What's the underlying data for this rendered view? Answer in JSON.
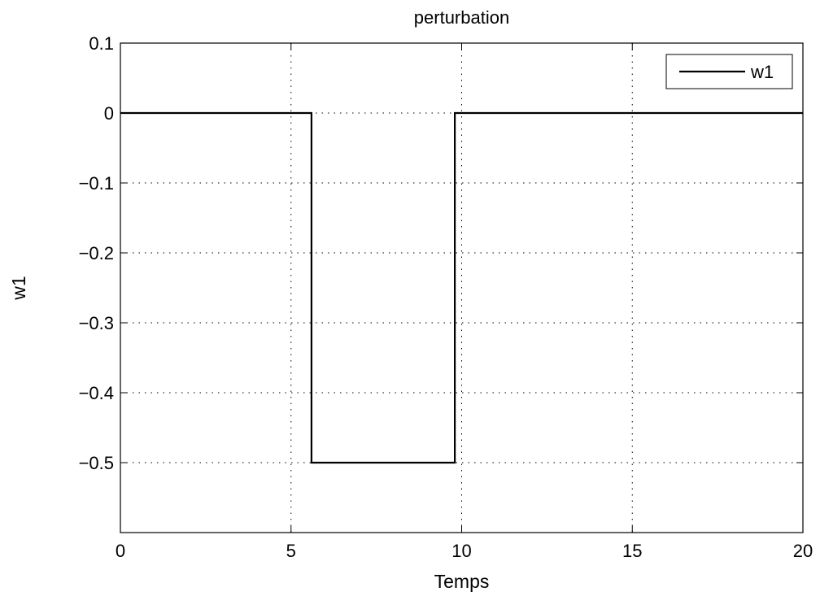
{
  "chart_data": {
    "type": "line",
    "title": "perturbation",
    "xlabel": "Temps",
    "ylabel": "w1",
    "xlim": [
      0,
      20
    ],
    "ylim": [
      -0.6,
      0.1
    ],
    "xticks": [
      0,
      5,
      10,
      15,
      20
    ],
    "yticks": [
      0.1,
      0,
      -0.1,
      -0.2,
      -0.3,
      -0.4,
      -0.5
    ],
    "xtick_labels": [
      "0",
      "5",
      "10",
      "15",
      "20"
    ],
    "ytick_labels": [
      "0.1",
      "0",
      "−0.1",
      "−0.2",
      "−0.3",
      "−0.4",
      "−0.5"
    ],
    "grid": true,
    "legend_position": "top-right",
    "series": [
      {
        "name": "w1",
        "color": "#000000",
        "x": [
          0,
          5.6,
          5.6,
          9.8,
          9.8,
          20
        ],
        "y": [
          0,
          0,
          -0.5,
          -0.5,
          0,
          0
        ]
      }
    ]
  }
}
